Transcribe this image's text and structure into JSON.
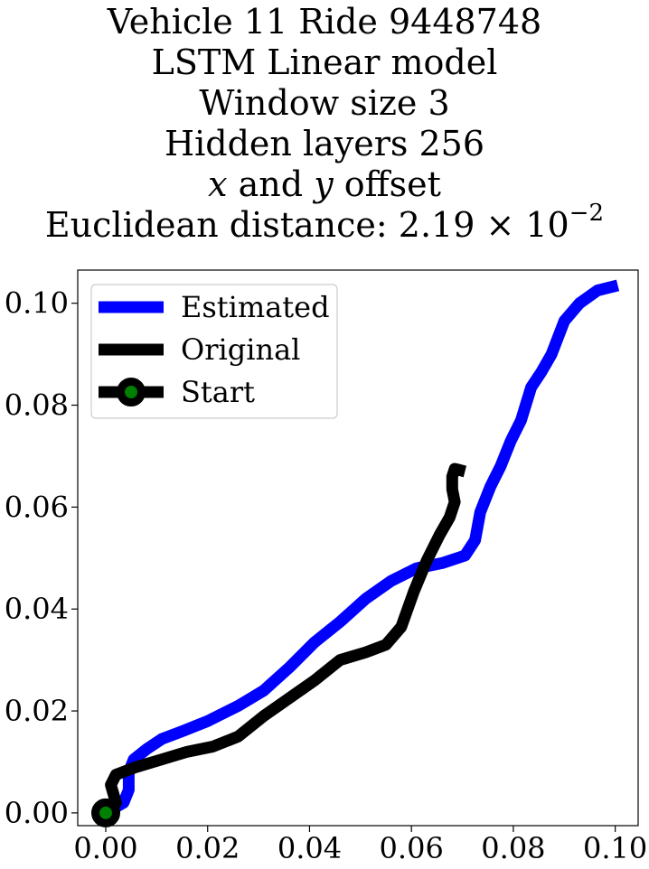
{
  "title": {
    "line1": "Vehicle 11 Ride 9448748",
    "line2": "LSTM Linear model",
    "line3": "Window size 3",
    "line4": "Hidden layers 256",
    "line5_x": "x",
    "line5_and": " and ",
    "line5_y": "y",
    "line5_rest": " offset",
    "line6_prefix": "Euclidean distance: 2.19 × 10",
    "line6_exp": "−2"
  },
  "chart_data": {
    "type": "line",
    "title": "Vehicle 11 Ride 9448748 LSTM Linear model Window size 3 Hidden layers 256 x and y offset Euclidean distance: 2.19 × 10^-2",
    "xlim": [
      -0.0055,
      0.1045
    ],
    "ylim": [
      -0.0025,
      0.1065
    ],
    "grid": false,
    "legend_position": "top-left",
    "x_ticks": [
      "0.00",
      "0.02",
      "0.04",
      "0.06",
      "0.08",
      "0.10"
    ],
    "y_ticks": [
      "0.00",
      "0.02",
      "0.04",
      "0.06",
      "0.08",
      "0.10"
    ],
    "x_tick_values": [
      0,
      0.02,
      0.04,
      0.06,
      0.08,
      0.1
    ],
    "y_tick_values": [
      0,
      0.02,
      0.04,
      0.06,
      0.08,
      0.1
    ],
    "series": [
      {
        "name": "Estimated",
        "color": "#0000ff",
        "points": [
          [
            0.0,
            0.0
          ],
          [
            0.0035,
            0.002
          ],
          [
            0.0045,
            0.0045
          ],
          [
            0.0045,
            0.008
          ],
          [
            0.0055,
            0.0105
          ],
          [
            0.008,
            0.0125
          ],
          [
            0.011,
            0.0145
          ],
          [
            0.015,
            0.016
          ],
          [
            0.02,
            0.018
          ],
          [
            0.026,
            0.021
          ],
          [
            0.031,
            0.024
          ],
          [
            0.036,
            0.0285
          ],
          [
            0.041,
            0.0335
          ],
          [
            0.046,
            0.0375
          ],
          [
            0.051,
            0.042
          ],
          [
            0.056,
            0.0455
          ],
          [
            0.061,
            0.048
          ],
          [
            0.066,
            0.049
          ],
          [
            0.0705,
            0.0505
          ],
          [
            0.0725,
            0.0535
          ],
          [
            0.0735,
            0.059
          ],
          [
            0.0755,
            0.064
          ],
          [
            0.0775,
            0.068
          ],
          [
            0.0795,
            0.073
          ],
          [
            0.0815,
            0.077
          ],
          [
            0.0835,
            0.0835
          ],
          [
            0.0855,
            0.0865
          ],
          [
            0.0875,
            0.09
          ],
          [
            0.09,
            0.0965
          ],
          [
            0.093,
            0.1
          ],
          [
            0.0965,
            0.1025
          ],
          [
            0.1005,
            0.1035
          ]
        ]
      },
      {
        "name": "Original",
        "color": "#000000",
        "points": [
          [
            0.0,
            0.0
          ],
          [
            0.002,
            0.002
          ],
          [
            0.001,
            0.0055
          ],
          [
            0.002,
            0.0075
          ],
          [
            0.006,
            0.009
          ],
          [
            0.011,
            0.0105
          ],
          [
            0.016,
            0.012
          ],
          [
            0.021,
            0.013
          ],
          [
            0.026,
            0.015
          ],
          [
            0.031,
            0.019
          ],
          [
            0.036,
            0.0225
          ],
          [
            0.041,
            0.026
          ],
          [
            0.046,
            0.03
          ],
          [
            0.051,
            0.0315
          ],
          [
            0.055,
            0.033
          ],
          [
            0.058,
            0.0365
          ],
          [
            0.0605,
            0.0435
          ],
          [
            0.063,
            0.0495
          ],
          [
            0.0655,
            0.0545
          ],
          [
            0.0675,
            0.058
          ],
          [
            0.0685,
            0.061
          ],
          [
            0.068,
            0.0635
          ],
          [
            0.068,
            0.066
          ],
          [
            0.0685,
            0.0675
          ],
          [
            0.0705,
            0.067
          ]
        ]
      },
      {
        "name": "Start",
        "color": "#008000",
        "marker_edge_color": "#000000",
        "points": [
          [
            0.0,
            0.0
          ]
        ]
      }
    ]
  }
}
